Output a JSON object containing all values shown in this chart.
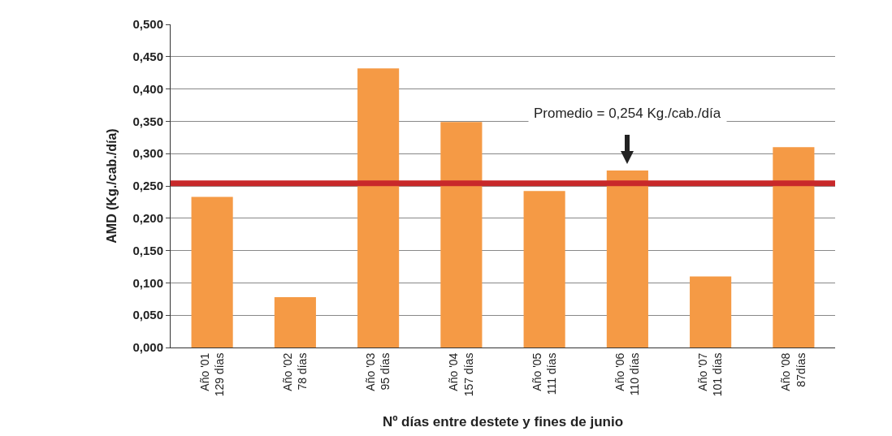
{
  "chart_data": {
    "type": "bar",
    "xlabel": "Nº días entre destete y fines de junio",
    "ylabel": "AMD (Kg./cab./día)",
    "categories": [
      "Año '01\n129 días",
      "Año '02\n78 días",
      "Año '03\n95 días",
      "Año '04\n157 días",
      "Año '05\n111 días",
      "Año '06\n110 días",
      "Año '07\n101 días",
      "Año '08\n87días"
    ],
    "values": [
      0.233,
      0.078,
      0.432,
      0.349,
      0.242,
      0.274,
      0.11,
      0.31
    ],
    "color": "#f59a45",
    "ylim": [
      0,
      0.5
    ],
    "yticks": [
      {
        "value": 0,
        "label": "0,000"
      },
      {
        "value": 0.05,
        "label": "0,050"
      },
      {
        "value": 0.1,
        "label": "0,100"
      },
      {
        "value": 0.15,
        "label": "0,150"
      },
      {
        "value": 0.2,
        "label": "0,200"
      },
      {
        "value": 0.25,
        "label": "0,250"
      },
      {
        "value": 0.3,
        "label": "0,300"
      },
      {
        "value": 0.35,
        "label": "0,350"
      },
      {
        "value": 0.4,
        "label": "0,400"
      },
      {
        "value": 0.45,
        "label": "0,450"
      },
      {
        "value": 0.5,
        "label": "0,500"
      }
    ],
    "grid": "y",
    "annotations": [
      "Promedio = 0,254 Kg./cab./día"
    ],
    "ref_lines": [
      {
        "axis": "y",
        "value": 0.254,
        "color": "#c8282a"
      }
    ]
  }
}
